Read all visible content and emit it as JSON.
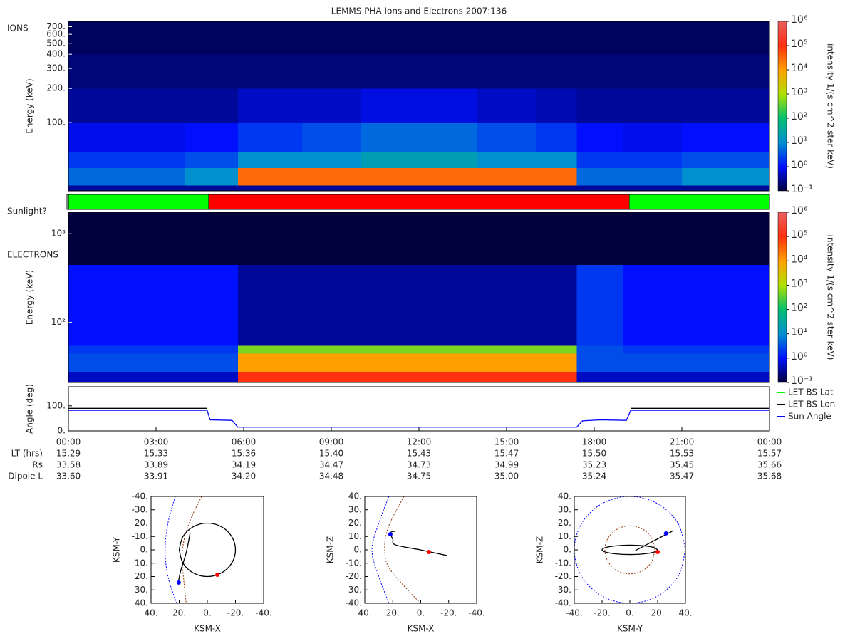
{
  "title": "LEMMS PHA Ions and Electrons  2007:136",
  "chart_data": [
    {
      "type": "heatmap",
      "label": "IONS",
      "ylabel": "Energy (keV)",
      "log_y": true,
      "xlim": [
        0,
        24
      ],
      "ylim": [
        25,
        780
      ],
      "yticks": [
        {
          "value": 100,
          "label": "100."
        },
        {
          "value": 200,
          "label": "200."
        },
        {
          "value": 300,
          "label": "300."
        },
        {
          "value": 400,
          "label": "400."
        },
        {
          "value": 500,
          "label": "500."
        },
        {
          "value": 600,
          "label": "600."
        },
        {
          "value": 700,
          "label": "700."
        }
      ],
      "x_bins": [
        0,
        2,
        4,
        5.8,
        8,
        10,
        12,
        14,
        16,
        17.4,
        19,
        21,
        24
      ],
      "y_bins": [
        25,
        28,
        40,
        55,
        100,
        200,
        400,
        780
      ],
      "values": [
        [
          0.3,
          0.3,
          0.3,
          0.3,
          0.3,
          0.3,
          0.3,
          0.3,
          0.3,
          0.3,
          0.3,
          0.3
        ],
        [
          5,
          5,
          10,
          30000,
          30000,
          30000,
          30000,
          30000,
          30000,
          5,
          5,
          10
        ],
        [
          2,
          2,
          3,
          10,
          10,
          20,
          20,
          10,
          10,
          2,
          2,
          3
        ],
        [
          0.8,
          0.8,
          1,
          2,
          3,
          5,
          5,
          3,
          2,
          1,
          0.8,
          1
        ],
        [
          0.3,
          0.3,
          0.3,
          0.5,
          0.5,
          0.7,
          0.7,
          0.5,
          0.4,
          0.3,
          0.3,
          0.3
        ],
        [
          0.2,
          0.2,
          0.2,
          0.2,
          0.2,
          0.2,
          0.2,
          0.2,
          0.2,
          0.2,
          0.2,
          0.2
        ],
        [
          0.15,
          0.15,
          0.15,
          0.15,
          0.15,
          0.15,
          0.15,
          0.15,
          0.15,
          0.15,
          0.15,
          0.15
        ]
      ],
      "colorbar": {
        "label": "intensity 1/(s cm^2 ster keV)",
        "lim": [
          0.1,
          1000000
        ],
        "colors": [
          "#00003c",
          "#0010ff",
          "#0090d0",
          "#00c070",
          "#b0e000",
          "#ffa000",
          "#ff3010",
          "#e86060"
        ],
        "ticks": [
          {
            "value": 0.1,
            "label": "10⁻¹"
          },
          {
            "value": 1,
            "label": "10⁰"
          },
          {
            "value": 10,
            "label": "10¹"
          },
          {
            "value": 100,
            "label": "10²"
          },
          {
            "value": 1000,
            "label": "10³"
          },
          {
            "value": 10000,
            "label": "10⁴"
          },
          {
            "value": 100000,
            "label": "10⁵"
          },
          {
            "value": 1000000,
            "label": "10⁶"
          }
        ]
      }
    },
    {
      "type": "segments",
      "label": "Sunlight?",
      "xlim": [
        0,
        24
      ],
      "segments": [
        {
          "start": 0,
          "end": 4.8,
          "color": "#00ff00"
        },
        {
          "start": 4.8,
          "end": 19.2,
          "color": "#ff0000"
        },
        {
          "start": 19.2,
          "end": 24,
          "color": "#00ff00"
        }
      ]
    },
    {
      "type": "heatmap",
      "label": "ELECTRONS",
      "ylabel": "Energy (keV)",
      "log_y": true,
      "xlim": [
        0,
        24
      ],
      "ylim": [
        21,
        1750
      ],
      "yticks": [
        {
          "value": 100,
          "label": "10²"
        },
        {
          "value": 1000,
          "label": "10³"
        }
      ],
      "x_bins": [
        0,
        2,
        4,
        5.8,
        8,
        10,
        12,
        14,
        16,
        17.4,
        19,
        21,
        24
      ],
      "y_bins": [
        21,
        28,
        45,
        55,
        450,
        1750
      ],
      "values": [
        [
          0.5,
          0.5,
          0.5,
          100000,
          100000,
          100000,
          100000,
          100000,
          100000,
          0.5,
          0.5,
          0.5
        ],
        [
          3,
          3,
          3,
          10000,
          10000,
          10000,
          10000,
          10000,
          10000,
          3,
          3,
          3
        ],
        [
          2,
          2,
          2,
          500,
          500,
          500,
          500,
          500,
          500,
          3,
          2,
          2
        ],
        [
          1,
          1,
          1,
          0.3,
          0.3,
          0.3,
          0.3,
          0.3,
          0.3,
          2,
          1,
          1
        ],
        [
          0.1,
          0.1,
          0.1,
          0.1,
          0.1,
          0.1,
          0.1,
          0.1,
          0.1,
          0.1,
          0.1,
          0.1
        ]
      ],
      "colorbar": {
        "label": "intensity 1/(s cm^2 ster keV)",
        "lim": [
          0.1,
          1000000
        ],
        "colors": [
          "#00003c",
          "#0010ff",
          "#0090d0",
          "#00c070",
          "#b0e000",
          "#ffa000",
          "#ff3010",
          "#e86060"
        ],
        "ticks": [
          {
            "value": 0.1,
            "label": "10⁻¹"
          },
          {
            "value": 1,
            "label": "10⁰"
          },
          {
            "value": 10,
            "label": "10¹"
          },
          {
            "value": 100,
            "label": "10²"
          },
          {
            "value": 1000,
            "label": "10³"
          },
          {
            "value": 10000,
            "label": "10⁴"
          },
          {
            "value": 100000,
            "label": "10⁵"
          },
          {
            "value": 1000000,
            "label": "10⁶"
          }
        ]
      }
    },
    {
      "type": "line",
      "ylabel": "Angle (deg)",
      "xlim": [
        0,
        24
      ],
      "ylim": [
        0,
        176
      ],
      "yticks": [
        {
          "value": 0,
          "label": "0."
        },
        {
          "value": 100,
          "label": "100."
        }
      ],
      "xticks": [
        {
          "value": 0,
          "label": "00:00"
        },
        {
          "value": 3,
          "label": "03:00"
        },
        {
          "value": 6,
          "label": "06:00"
        },
        {
          "value": 9,
          "label": "09:00"
        },
        {
          "value": 12,
          "label": "12:00"
        },
        {
          "value": 15,
          "label": "15:00"
        },
        {
          "value": 18,
          "label": "18:00"
        },
        {
          "value": 21,
          "label": "21:00"
        },
        {
          "value": 24,
          "label": "00:00"
        }
      ],
      "x": [
        0,
        4.75,
        4.85,
        5.6,
        5.8,
        17.4,
        17.6,
        18.2,
        19.1,
        19.25,
        24
      ],
      "series": [
        {
          "name": "LET BS Lat",
          "color": "#00ff00",
          "values": [
            null,
            null,
            null,
            null,
            null,
            null,
            null,
            null,
            null,
            null,
            null
          ]
        },
        {
          "name": "LET BS Lon",
          "color": "#000000",
          "values": [
            90,
            90,
            null,
            null,
            null,
            null,
            null,
            null,
            null,
            90,
            90
          ]
        },
        {
          "name": "Sun Angle",
          "color": "#0000ff",
          "values": [
            82,
            82,
            44,
            42,
            15,
            15,
            40,
            44,
            42,
            82,
            82
          ]
        }
      ]
    },
    {
      "type": "orbit",
      "xlabel": "KSM-X",
      "ylabel": "KSM-Y",
      "xlim": [
        40,
        -40
      ],
      "ylim": [
        40,
        -40
      ],
      "xticks": [
        {
          "value": 40,
          "label": "40."
        },
        {
          "value": 20,
          "label": "20."
        },
        {
          "value": 0,
          "label": "0."
        },
        {
          "value": -20,
          "label": "-20."
        },
        {
          "value": -40,
          "label": "-40."
        }
      ],
      "yticks": [
        {
          "value": -40,
          "label": "-40."
        },
        {
          "value": -30,
          "label": "-30."
        },
        {
          "value": -20,
          "label": "-20."
        },
        {
          "value": -10,
          "label": "-10."
        },
        {
          "value": 0,
          "label": "0."
        },
        {
          "value": 10,
          "label": "10."
        },
        {
          "value": 20,
          "label": "20."
        },
        {
          "value": 30,
          "label": "30."
        },
        {
          "value": 40,
          "label": "40."
        }
      ],
      "series": [
        {
          "color": "#0000ff",
          "dash": true,
          "x": [
            22.8,
            28,
            30,
            28,
            21.8
          ],
          "values": [
            -40,
            -20,
            0,
            20,
            40
          ]
        },
        {
          "color": "#8b3a0f",
          "dash": true,
          "x": [
            4,
            11,
            16,
            18,
            17,
            15
          ],
          "values": [
            -40,
            -25,
            -10,
            5,
            20,
            40
          ]
        },
        {
          "color": "#000000",
          "dash": false,
          "x": [
            20,
            17.3,
            10,
            0,
            -10,
            -17.3,
            -20,
            -17.3,
            -10,
            0,
            10,
            17.3,
            20
          ],
          "values": [
            0,
            10,
            17.3,
            20,
            17.3,
            10,
            0,
            -10,
            -17.3,
            -20,
            -17.3,
            -10,
            0
          ]
        },
        {
          "color": "#000000",
          "dash": false,
          "x": [
            12.2,
            15,
            19,
            20.8
          ],
          "values": [
            -12.8,
            2,
            16,
            25.6
          ]
        }
      ],
      "markers": {
        "x": [
          -7.1,
          20.3
        ],
        "values": [
          18.7,
          24.5
        ],
        "colors": [
          "#ff0000",
          "#0000ff"
        ]
      }
    },
    {
      "type": "orbit",
      "xlabel": "KSM-X",
      "ylabel": "KSM-Z",
      "xlim": [
        40,
        -40
      ],
      "ylim": [
        -40,
        40
      ],
      "xticks": [
        {
          "value": 40,
          "label": "40."
        },
        {
          "value": 20,
          "label": "20."
        },
        {
          "value": 0,
          "label": "0."
        },
        {
          "value": -20,
          "label": "-20."
        },
        {
          "value": -40,
          "label": "-40."
        }
      ],
      "yticks": [
        {
          "value": -40,
          "label": "-40."
        },
        {
          "value": -30,
          "label": "-30."
        },
        {
          "value": -20,
          "label": "-20."
        },
        {
          "value": -10,
          "label": "-10."
        },
        {
          "value": 0,
          "label": "0."
        },
        {
          "value": 10,
          "label": "10."
        },
        {
          "value": 20,
          "label": "20."
        },
        {
          "value": 30,
          "label": "30."
        },
        {
          "value": 40,
          "label": "40."
        }
      ],
      "series": [
        {
          "color": "#0000ff",
          "dash": true,
          "x": [
            22.7,
            30,
            34.9,
            30,
            22.7
          ],
          "values": [
            40,
            20,
            0,
            -20,
            -40
          ]
        },
        {
          "color": "#8b3a0f",
          "dash": true,
          "x": [
            12,
            23.2,
            25.7,
            21.7,
            0.3
          ],
          "values": [
            40,
            17,
            0,
            -15,
            -40
          ]
        },
        {
          "color": "#000000",
          "dash": false,
          "x": [
            18,
            21.7,
            20,
            18,
            0.3,
            -19
          ],
          "values": [
            14,
            12.8,
            8,
            3.7,
            0,
            -4.3
          ]
        }
      ],
      "markers": {
        "x": [
          -5.9,
          21.7
        ],
        "values": [
          -1.6,
          11.7
        ],
        "colors": [
          "#ff0000",
          "#0000ff"
        ]
      }
    },
    {
      "type": "orbit",
      "xlabel": "KSM-Y",
      "ylabel": "KSM-Z",
      "xlim": [
        -40,
        40
      ],
      "ylim": [
        -40,
        40
      ],
      "xticks": [
        {
          "value": -40,
          "label": "-40."
        },
        {
          "value": -20,
          "label": "-20."
        },
        {
          "value": 0,
          "label": "0."
        },
        {
          "value": 20,
          "label": "20."
        },
        {
          "value": 40,
          "label": "40."
        }
      ],
      "yticks": [
        {
          "value": -40,
          "label": "-40."
        },
        {
          "value": -30,
          "label": "-30."
        },
        {
          "value": -20,
          "label": "-20."
        },
        {
          "value": -10,
          "label": "-10."
        },
        {
          "value": 0,
          "label": "0."
        },
        {
          "value": 10,
          "label": "10."
        },
        {
          "value": 20,
          "label": "20."
        },
        {
          "value": 30,
          "label": "30."
        },
        {
          "value": 40,
          "label": "40."
        }
      ],
      "series": [
        {
          "color": "#0000ff",
          "dash": true,
          "x": [
            40,
            34.6,
            20,
            0,
            -20,
            -34.6,
            -40,
            -34.6,
            -20,
            0,
            20,
            34.6,
            40
          ],
          "values": [
            0,
            20,
            34.6,
            40,
            34.6,
            20,
            0,
            -20,
            -34.6,
            -40,
            -34.6,
            -20,
            0
          ]
        },
        {
          "color": "#8b3a0f",
          "dash": true,
          "x": [
            18,
            15.6,
            9,
            0,
            -9,
            -15.6,
            -18,
            -15.6,
            -9,
            0,
            9,
            15.6,
            18
          ],
          "values": [
            0,
            9,
            15.6,
            18,
            15.6,
            9,
            0,
            -9,
            -15.6,
            -18,
            -15.6,
            -9,
            0
          ]
        },
        {
          "color": "#000000",
          "dash": false,
          "x": [
            20,
            17.3,
            10,
            0,
            -10,
            -17.3,
            -20,
            -17.3,
            -10,
            0,
            10,
            17.3,
            20
          ],
          "values": [
            0,
            1.75,
            3,
            3.5,
            3,
            1.75,
            0,
            -1.75,
            -3,
            -3.5,
            -3,
            -1.75,
            0
          ]
        },
        {
          "color": "#000000",
          "dash": false,
          "x": [
            4,
            31.3
          ],
          "values": [
            -0.5,
            14.4
          ]
        }
      ],
      "markers": {
        "x": [
          20,
          26
        ],
        "values": [
          -1.6,
          12.3
        ],
        "colors": [
          "#ff0000",
          "#0000ff"
        ]
      }
    }
  ],
  "ephemeris": {
    "rows": [
      {
        "label": "LT (hrs)",
        "values": [
          "15.29",
          "15.33",
          "15.36",
          "15.40",
          "15.43",
          "15.47",
          "15.50",
          "15.53",
          "15.57"
        ]
      },
      {
        "label": "Rs",
        "values": [
          "33.58",
          "33.89",
          "34.19",
          "34.47",
          "34.73",
          "34.99",
          "35.23",
          "35.45",
          "35.66"
        ]
      },
      {
        "label": "Dipole L",
        "values": [
          "33.60",
          "33.91",
          "34.20",
          "34.48",
          "34.75",
          "35.00",
          "35.24",
          "35.47",
          "35.68"
        ]
      }
    ]
  }
}
